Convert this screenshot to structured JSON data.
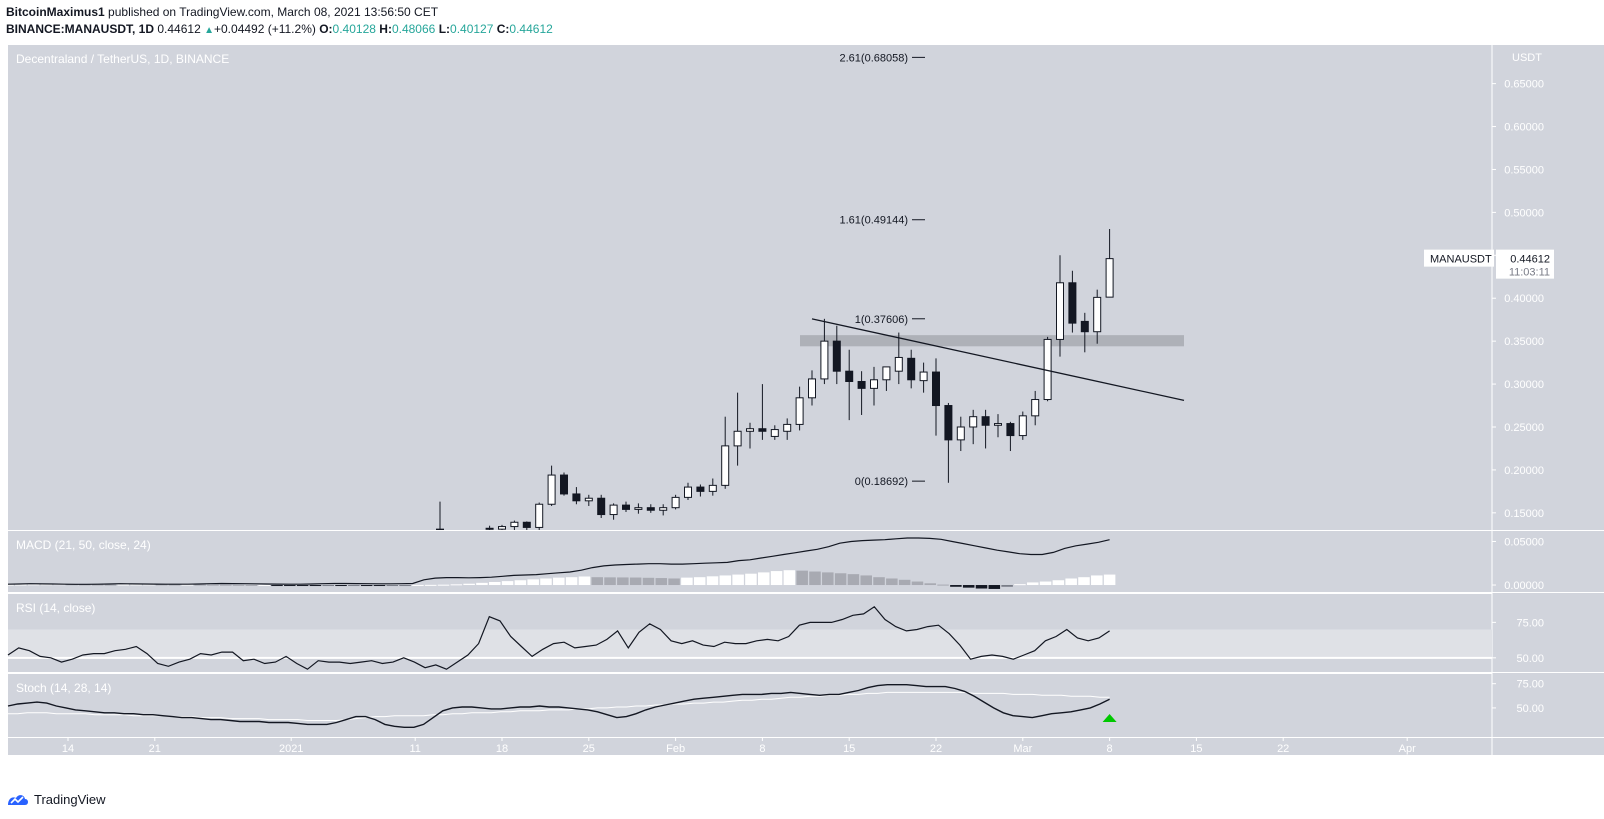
{
  "header": {
    "author": "BitcoinMaximus1",
    "published_text": "published on TradingView.com, March 08, 2021 13:56:50 CET",
    "symbol": "BINANCE:MANAUSDT, 1D",
    "last": "0.44612",
    "change": "+0.04492 (+11.2%)",
    "o_label": "O:",
    "o_value": "0.40128",
    "h_label": "H:",
    "h_value": "0.48066",
    "l_label": "L:",
    "l_value": "0.40127",
    "c_label": "C:",
    "c_value": "0.44612"
  },
  "footer": {
    "brand": "TradingView"
  },
  "colors": {
    "panel_bg": "#d1d4dc",
    "up_body": "#ffffff",
    "down_body": "#131722",
    "line": "#131722",
    "signal_up": "#00c800",
    "value_green": "#26a69a"
  },
  "chart_data": {
    "type": "candlestick",
    "title": "Decentraland / TetherUS, 1D, BINANCE",
    "price_unit": "USDT",
    "ylim": [
      0.13,
      0.695
    ],
    "y_ticks": [
      "0.65000",
      "0.60000",
      "0.55000",
      "0.50000",
      "0.45000",
      "0.40000",
      "0.35000",
      "0.30000",
      "0.25000",
      "0.20000",
      "0.15000"
    ],
    "x_ticks": [
      "14",
      "21",
      "2021",
      "11",
      "18",
      "25",
      "Feb",
      "8",
      "15",
      "22",
      "Mar",
      "8",
      "15",
      "22",
      "Apr"
    ],
    "last_price_label": {
      "symbol": "MANAUSDT",
      "price": "0.44612",
      "countdown": "11:03:11"
    },
    "fib_levels": [
      {
        "label": "2.61(0.68058)",
        "value": 0.68058
      },
      {
        "label": "1.61(0.49144)",
        "value": 0.49144
      },
      {
        "label": "1(0.37606)",
        "value": 0.37606
      },
      {
        "label": "0(0.18692)",
        "value": 0.18692
      }
    ],
    "resistance_zone": [
      0.344,
      0.357
    ],
    "descending_trendline": [
      {
        "date": "2021-02-13",
        "price": 0.376
      },
      {
        "date": "2021-03-15",
        "price": 0.281
      }
    ],
    "candles": [
      {
        "date": "2021-01-14",
        "o": 0.13,
        "h": 0.163,
        "l": 0.13,
        "c": 0.131
      },
      {
        "date": "2021-01-18",
        "o": 0.132,
        "h": 0.135,
        "l": 0.13,
        "c": 0.131
      },
      {
        "date": "2021-01-19",
        "o": 0.131,
        "h": 0.136,
        "l": 0.13,
        "c": 0.134
      },
      {
        "date": "2021-01-20",
        "o": 0.134,
        "h": 0.141,
        "l": 0.13,
        "c": 0.139
      },
      {
        "date": "2021-01-21",
        "o": 0.139,
        "h": 0.14,
        "l": 0.13,
        "c": 0.133
      },
      {
        "date": "2021-01-22",
        "o": 0.133,
        "h": 0.162,
        "l": 0.13,
        "c": 0.16
      },
      {
        "date": "2021-01-23",
        "o": 0.16,
        "h": 0.205,
        "l": 0.158,
        "c": 0.194
      },
      {
        "date": "2021-01-24",
        "o": 0.194,
        "h": 0.197,
        "l": 0.17,
        "c": 0.172
      },
      {
        "date": "2021-01-25",
        "o": 0.172,
        "h": 0.18,
        "l": 0.16,
        "c": 0.164
      },
      {
        "date": "2021-01-26",
        "o": 0.164,
        "h": 0.171,
        "l": 0.158,
        "c": 0.167
      },
      {
        "date": "2021-01-27",
        "o": 0.167,
        "h": 0.171,
        "l": 0.144,
        "c": 0.148
      },
      {
        "date": "2021-01-28",
        "o": 0.148,
        "h": 0.161,
        "l": 0.142,
        "c": 0.159
      },
      {
        "date": "2021-01-29",
        "o": 0.159,
        "h": 0.163,
        "l": 0.151,
        "c": 0.154
      },
      {
        "date": "2021-01-30",
        "o": 0.154,
        "h": 0.161,
        "l": 0.149,
        "c": 0.156
      },
      {
        "date": "2021-01-31",
        "o": 0.156,
        "h": 0.16,
        "l": 0.15,
        "c": 0.153
      },
      {
        "date": "2021-02-01",
        "o": 0.153,
        "h": 0.16,
        "l": 0.147,
        "c": 0.156
      },
      {
        "date": "2021-02-02",
        "o": 0.156,
        "h": 0.171,
        "l": 0.154,
        "c": 0.168
      },
      {
        "date": "2021-02-03",
        "o": 0.168,
        "h": 0.185,
        "l": 0.165,
        "c": 0.18
      },
      {
        "date": "2021-02-04",
        "o": 0.18,
        "h": 0.183,
        "l": 0.169,
        "c": 0.175
      },
      {
        "date": "2021-02-05",
        "o": 0.175,
        "h": 0.19,
        "l": 0.17,
        "c": 0.182
      },
      {
        "date": "2021-02-06",
        "o": 0.182,
        "h": 0.262,
        "l": 0.178,
        "c": 0.228
      },
      {
        "date": "2021-02-07",
        "o": 0.228,
        "h": 0.29,
        "l": 0.205,
        "c": 0.245
      },
      {
        "date": "2021-02-08",
        "o": 0.245,
        "h": 0.255,
        "l": 0.225,
        "c": 0.248
      },
      {
        "date": "2021-02-09",
        "o": 0.248,
        "h": 0.3,
        "l": 0.235,
        "c": 0.245
      },
      {
        "date": "2021-02-10",
        "o": 0.239,
        "h": 0.252,
        "l": 0.235,
        "c": 0.247
      },
      {
        "date": "2021-02-11",
        "o": 0.245,
        "h": 0.26,
        "l": 0.235,
        "c": 0.253
      },
      {
        "date": "2021-02-12",
        "o": 0.253,
        "h": 0.297,
        "l": 0.246,
        "c": 0.284
      },
      {
        "date": "2021-02-13",
        "o": 0.284,
        "h": 0.316,
        "l": 0.275,
        "c": 0.306
      },
      {
        "date": "2021-02-14",
        "o": 0.306,
        "h": 0.376,
        "l": 0.3,
        "c": 0.35
      },
      {
        "date": "2021-02-15",
        "o": 0.35,
        "h": 0.368,
        "l": 0.3,
        "c": 0.315
      },
      {
        "date": "2021-02-16",
        "o": 0.315,
        "h": 0.34,
        "l": 0.258,
        "c": 0.303
      },
      {
        "date": "2021-02-17",
        "o": 0.303,
        "h": 0.315,
        "l": 0.264,
        "c": 0.295
      },
      {
        "date": "2021-02-18",
        "o": 0.295,
        "h": 0.32,
        "l": 0.275,
        "c": 0.305
      },
      {
        "date": "2021-02-19",
        "o": 0.305,
        "h": 0.32,
        "l": 0.292,
        "c": 0.32
      },
      {
        "date": "2021-02-20",
        "o": 0.315,
        "h": 0.36,
        "l": 0.3,
        "c": 0.331
      },
      {
        "date": "2021-02-21",
        "o": 0.33,
        "h": 0.34,
        "l": 0.295,
        "c": 0.305
      },
      {
        "date": "2021-02-22",
        "o": 0.304,
        "h": 0.325,
        "l": 0.29,
        "c": 0.314
      },
      {
        "date": "2021-02-23",
        "o": 0.314,
        "h": 0.33,
        "l": 0.24,
        "c": 0.275
      },
      {
        "date": "2021-02-24",
        "o": 0.275,
        "h": 0.278,
        "l": 0.185,
        "c": 0.235
      },
      {
        "date": "2021-02-25",
        "o": 0.235,
        "h": 0.262,
        "l": 0.222,
        "c": 0.25
      },
      {
        "date": "2021-02-26",
        "o": 0.25,
        "h": 0.27,
        "l": 0.23,
        "c": 0.262
      },
      {
        "date": "2021-02-27",
        "o": 0.262,
        "h": 0.27,
        "l": 0.225,
        "c": 0.252
      },
      {
        "date": "2021-02-28",
        "o": 0.252,
        "h": 0.265,
        "l": 0.238,
        "c": 0.254
      },
      {
        "date": "2021-03-01",
        "o": 0.254,
        "h": 0.256,
        "l": 0.222,
        "c": 0.24
      },
      {
        "date": "2021-03-02",
        "o": 0.24,
        "h": 0.268,
        "l": 0.235,
        "c": 0.263
      },
      {
        "date": "2021-03-03",
        "o": 0.263,
        "h": 0.292,
        "l": 0.252,
        "c": 0.282
      },
      {
        "date": "2021-03-04",
        "o": 0.282,
        "h": 0.355,
        "l": 0.28,
        "c": 0.352
      },
      {
        "date": "2021-03-05",
        "o": 0.352,
        "h": 0.45,
        "l": 0.332,
        "c": 0.418
      },
      {
        "date": "2021-03-06",
        "o": 0.418,
        "h": 0.432,
        "l": 0.36,
        "c": 0.371
      },
      {
        "date": "2021-03-07",
        "o": 0.373,
        "h": 0.383,
        "l": 0.337,
        "c": 0.361
      },
      {
        "date": "2021-03-08",
        "o": 0.361,
        "h": 0.41,
        "l": 0.347,
        "c": 0.401
      },
      {
        "date": "2021-03-09",
        "o": 0.40128,
        "h": 0.48066,
        "l": 0.40127,
        "c": 0.44612
      }
    ],
    "indicators": [
      {
        "name": "MACD (21, 50, close, 24)",
        "ylim": [
          -0.008,
          0.062
        ],
        "y_ticks": [
          "0.05000",
          "0.00000"
        ],
        "macd_line": [
          0.001,
          0.0012,
          0.0015,
          0.0013,
          0.0012,
          0.001,
          0.0008,
          0.0008,
          0.001,
          0.0012,
          0.0015,
          0.0013,
          0.0012,
          0.0011,
          0.001,
          0.0009,
          0.001,
          0.0012,
          0.0015,
          0.0018,
          0.0016,
          0.0015,
          0.0014,
          0.0012,
          0.0011,
          0.001,
          0.001,
          0.0012,
          0.0015,
          0.0018,
          0.0017,
          0.0016,
          0.0015,
          0.0014,
          0.0014,
          0.0015,
          0.0018,
          0.006,
          0.008,
          0.0085,
          0.0085,
          0.0083,
          0.0085,
          0.009,
          0.01,
          0.011,
          0.0115,
          0.012,
          0.013,
          0.014,
          0.015,
          0.017,
          0.02,
          0.022,
          0.023,
          0.0235,
          0.024,
          0.0245,
          0.0245,
          0.024,
          0.024,
          0.0245,
          0.025,
          0.0255,
          0.026,
          0.028,
          0.029,
          0.031,
          0.033,
          0.035,
          0.037,
          0.039,
          0.041,
          0.044,
          0.048,
          0.05,
          0.051,
          0.0515,
          0.052,
          0.053,
          0.054,
          0.054,
          0.0535,
          0.0525,
          0.05,
          0.0475,
          0.045,
          0.0425,
          0.04,
          0.038,
          0.036,
          0.035,
          0.035,
          0.0375,
          0.042,
          0.045,
          0.047,
          0.049,
          0.052
        ],
        "histogram": [
          0.0005,
          0.0006,
          0.0008,
          0.0009,
          0.001,
          0.0009,
          0.0007,
          0.0006,
          0.0005,
          0.0006,
          0.0007,
          0.0008,
          0.0007,
          0.0006,
          0.0006,
          0.0005,
          0.0004,
          0.0003,
          0.0002,
          0.0001,
          0.0001,
          -0.0002,
          -0.0004,
          -0.0005,
          -0.0005,
          -0.0004,
          -0.0004,
          -0.0003,
          -0.0003,
          -0.0003,
          -0.0002,
          -0.0001,
          0.0001,
          0.0002,
          0.0004,
          0.0008,
          0.0015,
          0.0025,
          0.0035,
          0.0045,
          0.0055,
          0.0065,
          0.0075,
          0.0085,
          0.009,
          0.0098,
          0.009,
          0.0088,
          0.0087,
          0.0086,
          0.0083,
          0.008,
          0.0075,
          0.0085,
          0.009,
          0.01,
          0.011,
          0.012,
          0.013,
          0.0145,
          0.016,
          0.017,
          0.0165,
          0.0155,
          0.0145,
          0.0135,
          0.0125,
          0.011,
          0.009,
          0.0075,
          0.006,
          0.004,
          0.002,
          0.0005,
          -0.002,
          -0.003,
          -0.004,
          -0.0045,
          -0.002,
          0.001,
          0.003,
          0.004,
          0.0055,
          0.0075,
          0.009,
          0.011,
          0.012
        ]
      },
      {
        "name": "RSI (14, close)",
        "ylim": [
          40,
          95
        ],
        "y_ticks": [
          "75.00",
          "50.00"
        ],
        "band": [
          50,
          70
        ],
        "values": [
          52,
          57,
          55,
          51,
          50,
          47,
          49,
          52,
          53,
          53,
          55,
          56,
          58,
          53,
          46,
          44,
          47,
          49,
          53,
          52,
          54,
          54,
          48,
          49,
          46,
          47,
          51,
          46,
          42,
          48,
          47,
          47,
          46,
          47,
          48,
          46,
          47,
          50,
          47,
          43,
          45,
          42,
          47,
          52,
          60,
          79,
          76,
          65,
          58,
          51,
          56,
          60,
          61,
          57,
          58,
          59,
          63,
          69,
          57,
          68,
          74,
          70,
          62,
          60,
          62,
          59,
          58,
          61,
          60,
          60,
          62,
          63,
          62,
          65,
          73,
          75,
          75,
          75,
          77,
          80,
          81,
          86,
          77,
          72,
          69,
          70,
          72,
          73,
          67,
          59,
          49,
          51,
          52,
          51,
          49,
          52,
          55,
          62,
          65,
          70,
          64,
          62,
          64,
          69
        ]
      },
      {
        "name": "Stoch (14, 28, 14)",
        "ylim": [
          20,
          85
        ],
        "y_ticks": [
          "75.00",
          "50.00"
        ],
        "k": [
          52,
          54,
          55,
          56,
          55,
          52,
          50,
          48,
          47,
          46,
          45,
          45,
          44,
          44,
          43,
          43,
          42,
          41,
          40,
          40,
          39,
          38,
          38,
          37,
          36,
          36,
          36,
          35,
          35,
          35,
          34,
          33,
          33,
          33,
          35,
          38,
          41,
          41,
          38,
          33,
          31,
          30,
          30,
          33,
          40,
          47,
          50,
          51,
          51,
          50,
          49,
          49,
          50,
          51,
          51,
          52,
          51,
          51,
          50,
          49,
          48,
          46,
          43,
          40,
          41,
          44,
          48,
          51,
          53,
          55,
          57,
          59,
          60,
          61,
          62,
          63,
          64,
          64,
          64,
          65,
          65,
          66,
          65,
          64,
          63,
          64,
          64,
          66,
          68,
          71,
          73,
          74,
          74,
          74,
          73,
          72,
          72,
          72,
          70,
          67,
          62,
          56,
          50,
          45,
          42,
          41,
          40,
          42,
          44,
          45,
          46,
          48,
          50,
          54,
          59
        ],
        "d": [
          44,
          44,
          45,
          45,
          45,
          44,
          44,
          44,
          44,
          43,
          43,
          43,
          43,
          42,
          42,
          42,
          42,
          41,
          41,
          41,
          40,
          40,
          40,
          39,
          39,
          39,
          39,
          38,
          38,
          38,
          38,
          37,
          37,
          37,
          37,
          38,
          39,
          40,
          41,
          41,
          42,
          42,
          42,
          42,
          43,
          43,
          44,
          44,
          45,
          45,
          45,
          46,
          46,
          47,
          47,
          47,
          48,
          48,
          48,
          49,
          49,
          50,
          50,
          51,
          51,
          52,
          52,
          53,
          53,
          54,
          54,
          55,
          55,
          56,
          56,
          57,
          58,
          58,
          59,
          59,
          60,
          61,
          61,
          62,
          62,
          63,
          63,
          64,
          64,
          65,
          65,
          66,
          66,
          66,
          66,
          66,
          66,
          66,
          66,
          66,
          65,
          65,
          65,
          65,
          64,
          64,
          64,
          63,
          63,
          63,
          62,
          62,
          62,
          61,
          61
        ],
        "signal": "up-arrow"
      }
    ],
    "legend": [
      "MACD (21, 50, close, 24)",
      "RSI (14, close)",
      "Stoch (14, 28, 14)"
    ]
  }
}
